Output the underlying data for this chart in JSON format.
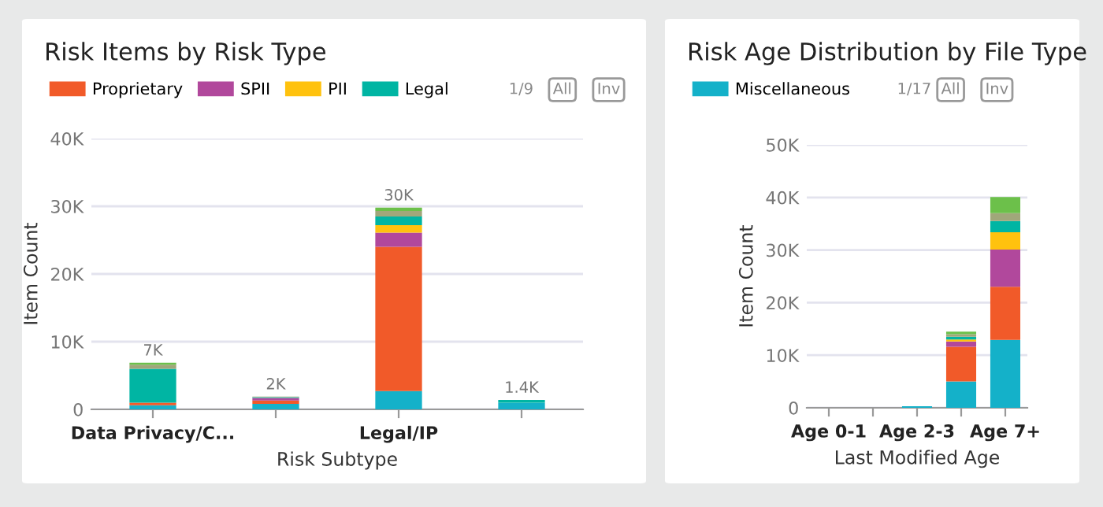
{
  "chart_data": [
    {
      "type": "bar",
      "title": "Risk Items by Risk Type",
      "xlabel": "Risk Subtype",
      "ylabel": "Item Count",
      "stacked": true,
      "grid": "y",
      "legend": "top",
      "categories": [
        "Data Privacy/C...",
        null,
        "Legal/IP",
        null
      ],
      "series": [
        {
          "color": "#14b1c9",
          "values": [
            600,
            800,
            2700,
            1000
          ]
        },
        {
          "name": "Proprietary",
          "color": "#f15a29",
          "values": [
            400,
            500,
            21300,
            0
          ]
        },
        {
          "name": "SPII",
          "color": "#b1489c",
          "values": [
            null,
            400,
            2100,
            0
          ]
        },
        {
          "name": "PII",
          "color": "#ffc20e",
          "values": [
            0,
            0,
            1100,
            0
          ]
        },
        {
          "name": "Legal",
          "color": "#00b5a3",
          "values": [
            5000,
            100,
            1300,
            400
          ]
        },
        {
          "color": "#a0a77a",
          "values": [
            600,
            100,
            800,
            0
          ]
        },
        {
          "color": "#6cc04a",
          "values": [
            300,
            0,
            500,
            0
          ]
        }
      ],
      "totals": [
        "7K",
        "2K",
        "30K",
        "1.4K"
      ],
      "ylim": [
        0,
        40000
      ],
      "yticks": [
        {
          "value": 0,
          "label": "0"
        },
        {
          "value": 10000,
          "label": "10K"
        },
        {
          "value": 20000,
          "label": "20K"
        },
        {
          "value": 30000,
          "label": "30K"
        },
        {
          "value": 40000,
          "label": "40K"
        }
      ],
      "annotations": [
        "1/9",
        "All",
        "Inv"
      ]
    },
    {
      "type": "bar",
      "title": "Risk Age Distribution by File Type",
      "xlabel": "Last Modified Age",
      "ylabel": "Item Count",
      "stacked": true,
      "grid": "y",
      "legend": "top",
      "categories": [
        "Age 0-1",
        null,
        "Age 2-3",
        null,
        "Age 7+"
      ],
      "series": [
        {
          "name": "Miscellaneous",
          "color": "#14b1c9",
          "values": [
            0,
            0,
            300,
            5000,
            12900
          ]
        },
        {
          "color": "#f15a29",
          "values": [
            0,
            0,
            0,
            6600,
            10100
          ]
        },
        {
          "color": "#b1489c",
          "values": [
            0,
            0,
            0,
            1000,
            7100
          ]
        },
        {
          "color": "#ffc20e",
          "values": [
            0,
            0,
            0,
            400,
            3300
          ]
        },
        {
          "color": "#00b5a3",
          "values": [
            0,
            0,
            0,
            500,
            2100
          ]
        },
        {
          "color": "#a0a77a",
          "values": [
            0,
            0,
            0,
            500,
            1500
          ]
        },
        {
          "color": "#6cc04a",
          "values": [
            0,
            0,
            0,
            500,
            3100
          ]
        }
      ],
      "ylim": [
        0,
        50000
      ],
      "yticks": [
        {
          "value": 0,
          "label": "0"
        },
        {
          "value": 10000,
          "label": "10K"
        },
        {
          "value": 20000,
          "label": "20K"
        },
        {
          "value": 30000,
          "label": "30K"
        },
        {
          "value": 40000,
          "label": "40K"
        },
        {
          "value": 50000,
          "label": "50K"
        }
      ],
      "annotations": [
        "1/17",
        "All",
        "Inv"
      ]
    }
  ]
}
